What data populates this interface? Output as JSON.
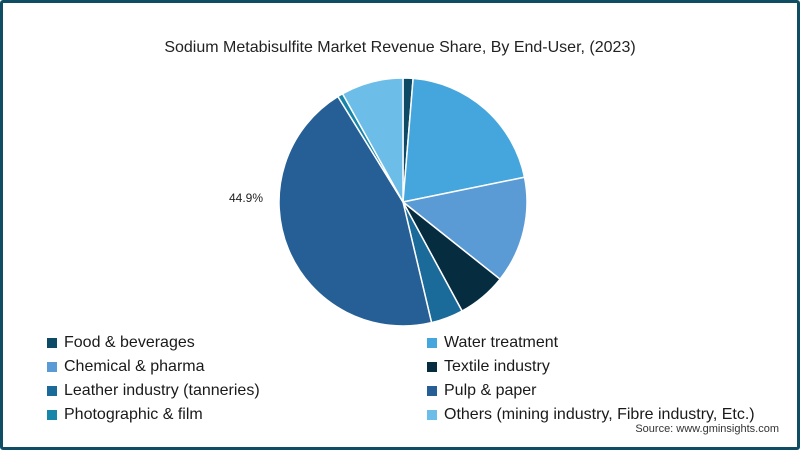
{
  "chart_data": {
    "type": "pie",
    "title": "Sodium Metabisulfite Market Revenue Share, By End-User, (2023)",
    "start_angle_deg": 0,
    "direction": "clockwise",
    "categories": [
      "Food & beverages",
      "Water treatment",
      "Chemical & pharma",
      "Textile industry",
      "Leather industry (tanneries)",
      "Pulp & paper",
      "Photographic & film",
      "Others (mining industry, Fibre industry, Etc.)"
    ],
    "values": [
      1.3,
      20.5,
      13.9,
      6.4,
      4.2,
      44.9,
      0.7,
      8.1
    ],
    "colors": [
      "#0d4a66",
      "#44a6dc",
      "#5b9bd5",
      "#062c40",
      "#1a6a9a",
      "#255f96",
      "#1786a8",
      "#6cbde8"
    ],
    "data_labels": [
      {
        "category": "Pulp & paper",
        "text": "44.9%"
      }
    ],
    "legend_position": "bottom",
    "units": "%"
  },
  "title": "Sodium Metabisulfite Market Revenue Share, By End-User, (2023)",
  "pie_label": "44.9%",
  "legend": [
    {
      "label": "Food & beverages",
      "color": "#0d4a66"
    },
    {
      "label": "Water treatment",
      "color": "#44a6dc"
    },
    {
      "label": "Chemical & pharma",
      "color": "#5b9bd5"
    },
    {
      "label": "Textile industry",
      "color": "#062c40"
    },
    {
      "label": "Leather industry (tanneries)",
      "color": "#1a6a9a"
    },
    {
      "label": "Pulp & paper",
      "color": "#255f96"
    },
    {
      "label": "Photographic & film",
      "color": "#1786a8"
    },
    {
      "label": "Others (mining industry, Fibre industry, Etc.)",
      "color": "#6cbde8"
    }
  ],
  "source": "Source: www.gminsights.com",
  "frame_color": "#0e4d64"
}
